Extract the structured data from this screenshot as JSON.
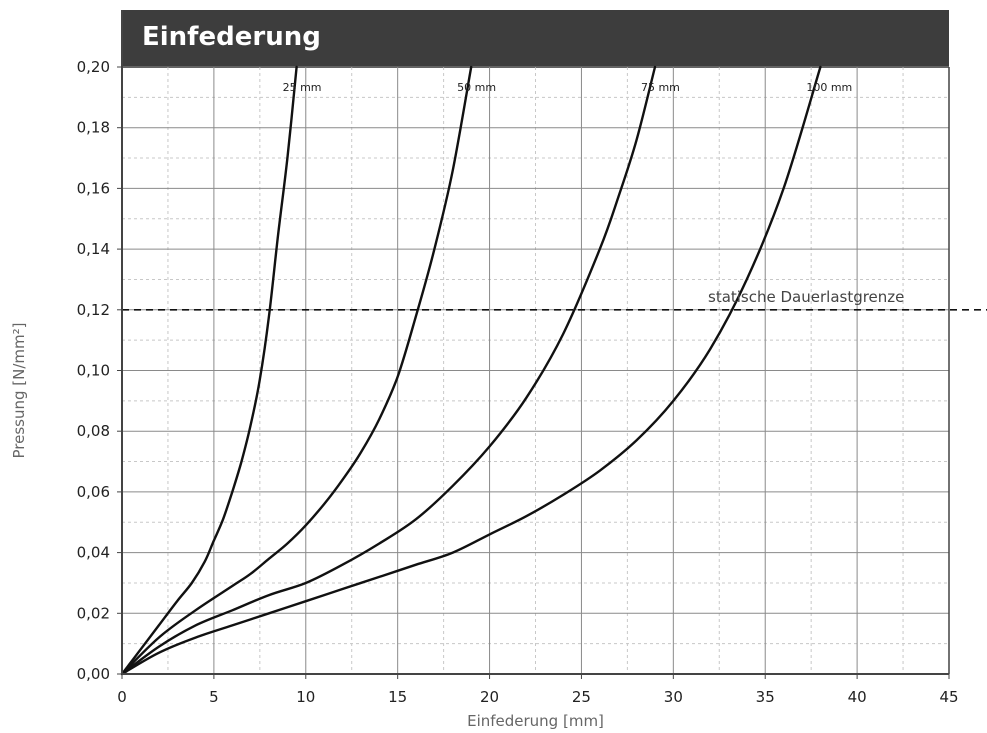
{
  "chart_data": {
    "type": "line",
    "title": "Einfederung",
    "xlabel": "Einfederung [mm]",
    "ylabel": "Pressung [N/mm²]",
    "xlim": [
      0,
      45
    ],
    "ylim": [
      0,
      0.2
    ],
    "xticks": [
      "0",
      "5",
      "10",
      "15",
      "20",
      "25",
      "30",
      "35",
      "40",
      "45"
    ],
    "yticks": [
      "0,00",
      "0,02",
      "0,04",
      "0,06",
      "0,08",
      "0,10",
      "0,12",
      "0,14",
      "0,16",
      "0,18",
      "0,20"
    ],
    "grid": true,
    "series": [
      {
        "name": "25 mm",
        "x": [
          0,
          1,
          2,
          3,
          3.8,
          4.5,
          5,
          5.5,
          6,
          6.5,
          7,
          7.5,
          8,
          8.5,
          9,
          9.5
        ],
        "y": [
          0,
          0.008,
          0.016,
          0.024,
          0.03,
          0.037,
          0.044,
          0.051,
          0.06,
          0.07,
          0.082,
          0.097,
          0.118,
          0.145,
          0.17,
          0.2
        ]
      },
      {
        "name": "50 mm",
        "x": [
          0,
          2,
          4,
          6,
          7,
          8,
          9,
          10,
          11,
          12,
          13,
          14,
          15,
          16,
          17,
          18,
          19
        ],
        "y": [
          0,
          0.012,
          0.021,
          0.029,
          0.033,
          0.038,
          0.043,
          0.049,
          0.056,
          0.064,
          0.073,
          0.084,
          0.098,
          0.118,
          0.14,
          0.166,
          0.2
        ]
      },
      {
        "name": "75 mm",
        "x": [
          0,
          2,
          4,
          6,
          8,
          10,
          12,
          14,
          16,
          18,
          20,
          22,
          24,
          26,
          27,
          28,
          29
        ],
        "y": [
          0,
          0.009,
          0.016,
          0.021,
          0.026,
          0.03,
          0.036,
          0.043,
          0.051,
          0.062,
          0.075,
          0.091,
          0.112,
          0.14,
          0.157,
          0.176,
          0.2
        ]
      },
      {
        "name": "100 mm",
        "x": [
          0,
          2,
          4,
          6,
          8,
          10,
          12,
          14,
          16,
          18,
          20,
          22,
          24,
          26,
          28,
          30,
          32,
          34,
          36,
          38
        ],
        "y": [
          0,
          0.007,
          0.012,
          0.016,
          0.02,
          0.024,
          0.028,
          0.032,
          0.036,
          0.04,
          0.046,
          0.052,
          0.059,
          0.067,
          0.077,
          0.09,
          0.107,
          0.13,
          0.16,
          0.2
        ]
      }
    ],
    "annotations": [
      {
        "text": "statische Dauerlastgrenze",
        "y": 0.12,
        "style": "dashed horizontal line"
      }
    ]
  }
}
